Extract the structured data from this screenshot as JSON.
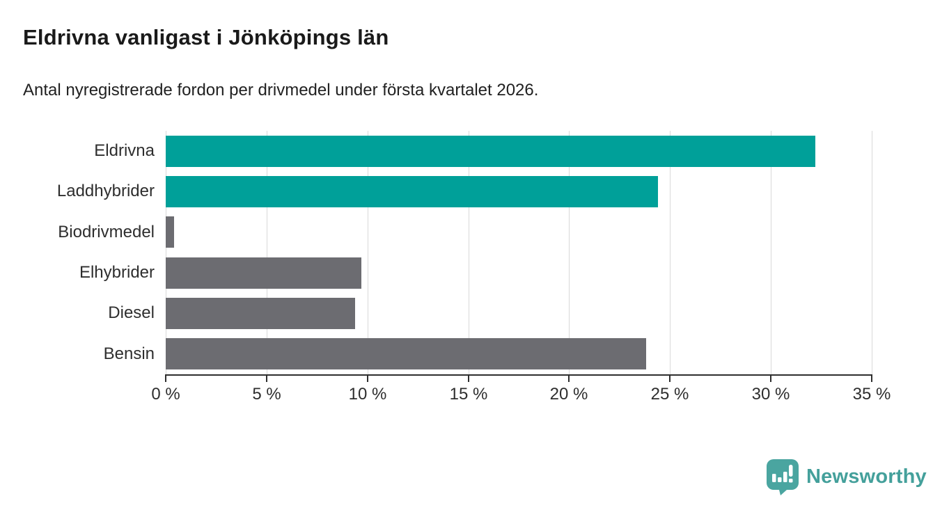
{
  "header": {
    "title": "Eldrivna vanligast i Jönköpings län",
    "subtitle": "Antal nyregistrerade fordon per drivmedel under första kvartalet 2026."
  },
  "chart_data": {
    "type": "bar",
    "orientation": "horizontal",
    "title": "Eldrivna vanligast i Jönköpings län",
    "subtitle": "Antal nyregistrerade fordon per drivmedel under första kvartalet 2026.",
    "categories": [
      "Eldrivna",
      "Laddhybrider",
      "Biodrivmedel",
      "Elhybrider",
      "Diesel",
      "Bensin"
    ],
    "values": [
      32.2,
      24.4,
      0.4,
      9.7,
      9.4,
      23.8
    ],
    "unit": "%",
    "bar_colors": [
      "#00a099",
      "#00a099",
      "#6c6c71",
      "#6c6c71",
      "#6c6c71",
      "#6c6c71"
    ],
    "xlim": [
      0,
      35
    ],
    "x_ticks": [
      0,
      5,
      10,
      15,
      20,
      25,
      30,
      35
    ],
    "x_tick_labels": [
      "0 %",
      "5 %",
      "10 %",
      "15 %",
      "20 %",
      "25 %",
      "30 %",
      "35 %"
    ],
    "grid": "vertical-gridlines",
    "legend": "none",
    "colors": {
      "highlight": "#00a099",
      "neutral": "#6c6c71",
      "gridline": "#d9d9d9",
      "axis": "#2e2e2e",
      "text": "#2e2e2e"
    }
  },
  "footer": {
    "brand": "Newsworthy",
    "brand_color": "#44a09b"
  }
}
